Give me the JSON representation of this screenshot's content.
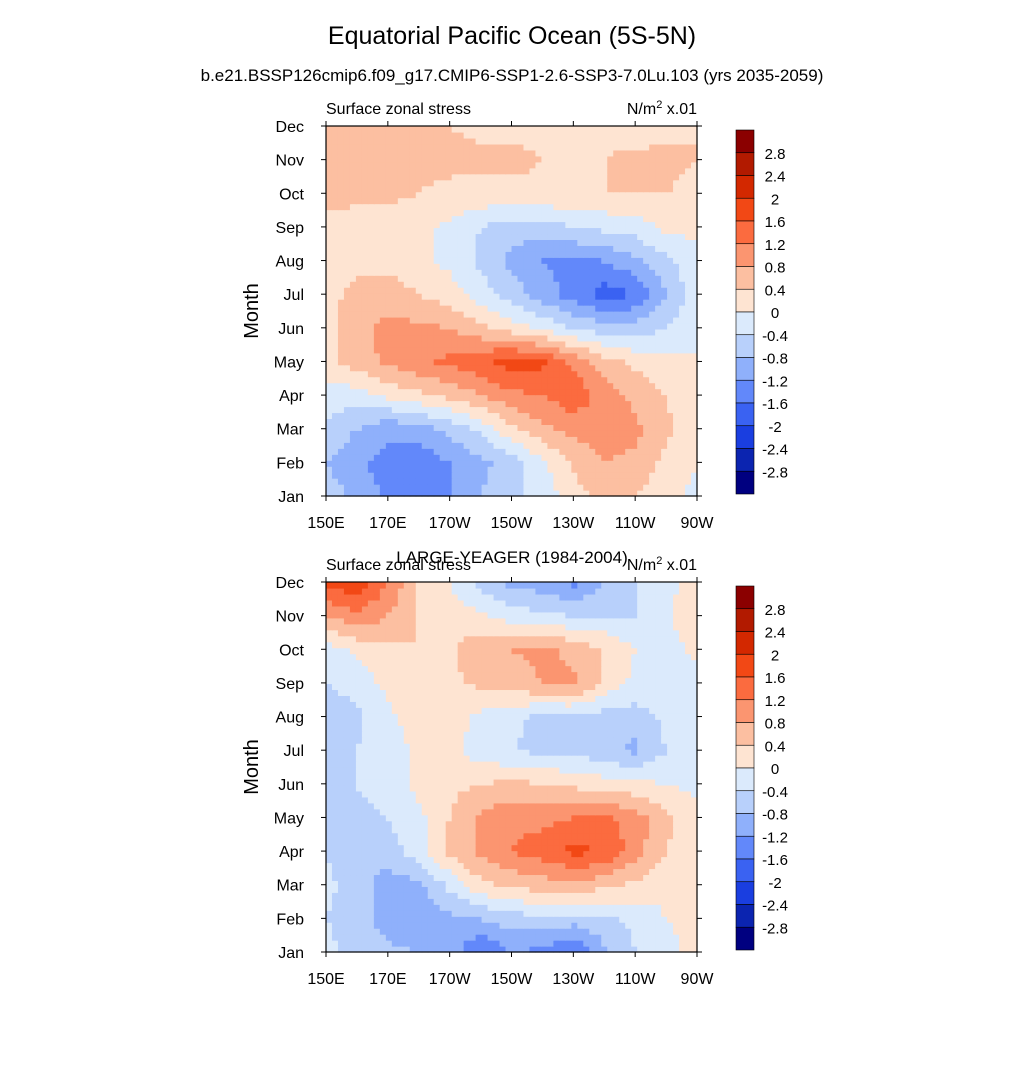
{
  "title": "Equatorial Pacific Ocean (5S-5N)",
  "subtitle": "b.e21.BSSP126cmip6.f09_g17.CMIP6-SSP1-2.6-SSP3-7.0Lu.103 (yrs 2035-2059)",
  "colorbar": {
    "levels": [
      "2.8",
      "2.4",
      "2",
      "1.6",
      "1.2",
      "0.8",
      "0.4",
      "0",
      "-0.4",
      "-0.8",
      "-1.2",
      "-1.6",
      "-2",
      "-2.4",
      "-2.8"
    ],
    "colors": [
      "#8b0000",
      "#b21a00",
      "#d32800",
      "#f24815",
      "#fb6b3f",
      "#fb9570",
      "#fcbfa1",
      "#fee4d2",
      "#dbeafc",
      "#b8d0fb",
      "#8fb0fb",
      "#6288fa",
      "#3a62f2",
      "#1a3ee0",
      "#0b24b0",
      "#000080"
    ]
  },
  "chart_data": [
    {
      "type": "heatmap",
      "plot_title": "",
      "left_label": "Surface zonal stress",
      "right_label_base": "N/m",
      "right_label_exp": "2",
      "right_label_suffix": " x.01",
      "ylabel": "Month",
      "y_ticks": [
        "Jan",
        "Feb",
        "Mar",
        "Apr",
        "May",
        "Jun",
        "Jul",
        "Aug",
        "Sep",
        "Oct",
        "Nov",
        "Dec"
      ],
      "x_ticks": [
        "150E",
        "170E",
        "170W",
        "150W",
        "130W",
        "110W",
        "90W"
      ],
      "xlim_lon": [
        150,
        270
      ],
      "ylim_month": [
        1,
        12
      ],
      "lon": [
        150,
        160,
        170,
        180,
        190,
        200,
        210,
        220,
        230,
        240,
        250,
        260,
        270
      ],
      "month": [
        1,
        2,
        3,
        4,
        5,
        6,
        7,
        8,
        9,
        10,
        11,
        12
      ],
      "values": [
        [
          -0.6,
          -0.9,
          -1.3,
          -1.4,
          -1.2,
          -0.8,
          -0.5,
          -0.2,
          0.2,
          0.5,
          0.4,
          0.1,
          -0.1
        ],
        [
          -0.8,
          -1.1,
          -1.4,
          -1.5,
          -1.2,
          -0.9,
          -0.6,
          -0.1,
          0.5,
          0.8,
          0.7,
          0.3,
          0.0
        ],
        [
          -0.5,
          -0.8,
          -1.1,
          -1.0,
          -0.7,
          -0.3,
          0.3,
          0.7,
          0.9,
          1.0,
          0.9,
          0.5,
          0.1
        ],
        [
          -0.2,
          -0.2,
          0.1,
          0.3,
          0.5,
          0.8,
          1.1,
          1.2,
          1.5,
          1.0,
          0.7,
          0.4,
          0.1
        ],
        [
          0.3,
          0.6,
          0.9,
          1.1,
          1.3,
          1.5,
          1.8,
          1.7,
          1.1,
          0.6,
          0.3,
          0.1,
          0.0
        ],
        [
          0.2,
          0.7,
          0.9,
          0.9,
          0.8,
          0.5,
          0.2,
          -0.1,
          -0.4,
          -0.6,
          -0.6,
          -0.4,
          0.0
        ],
        [
          0.3,
          0.5,
          0.6,
          0.4,
          0.2,
          -0.2,
          -0.6,
          -1.0,
          -1.4,
          -1.8,
          -1.6,
          -0.8,
          -0.2
        ],
        [
          0.3,
          0.3,
          0.3,
          0.1,
          -0.1,
          -0.5,
          -0.9,
          -1.2,
          -1.3,
          -1.2,
          -0.9,
          -0.5,
          -0.1
        ],
        [
          0.2,
          0.2,
          0.2,
          0.1,
          -0.1,
          -0.4,
          -0.6,
          -0.6,
          -0.4,
          -0.3,
          -0.2,
          0.1,
          0.1
        ],
        [
          0.6,
          0.5,
          0.5,
          0.4,
          0.3,
          0.3,
          0.3,
          0.3,
          0.4,
          0.4,
          0.4,
          0.4,
          0.3
        ],
        [
          0.5,
          0.4,
          0.5,
          0.5,
          0.5,
          0.5,
          0.5,
          0.4,
          0.4,
          0.4,
          0.5,
          0.5,
          0.4
        ],
        [
          0.4,
          0.4,
          0.4,
          0.4,
          0.4,
          0.3,
          0.3,
          0.3,
          0.3,
          0.3,
          0.2,
          0.3,
          0.4
        ]
      ]
    },
    {
      "type": "heatmap",
      "plot_title": "LARGE-YEAGER (1984-2004)",
      "left_label": "Surface zonal stress",
      "right_label_base": "N/m",
      "right_label_exp": "2",
      "right_label_suffix": " x.01",
      "ylabel": "Month",
      "y_ticks": [
        "Jan",
        "Feb",
        "Mar",
        "Apr",
        "May",
        "Jun",
        "Jul",
        "Aug",
        "Sep",
        "Oct",
        "Nov",
        "Dec"
      ],
      "x_ticks": [
        "150E",
        "170E",
        "170W",
        "150W",
        "130W",
        "110W",
        "90W"
      ],
      "xlim_lon": [
        150,
        270
      ],
      "ylim_month": [
        1,
        12
      ],
      "lon": [
        150,
        160,
        170,
        180,
        190,
        200,
        210,
        220,
        230,
        240,
        250,
        260,
        270
      ],
      "month": [
        1,
        2,
        3,
        4,
        5,
        6,
        7,
        8,
        9,
        10,
        11,
        12
      ],
      "values": [
        [
          -0.3,
          -0.5,
          -0.7,
          -0.8,
          -1.0,
          -1.6,
          -1.2,
          -1.3,
          -1.7,
          -0.9,
          -0.4,
          -0.1,
          0.1
        ],
        [
          -0.4,
          -0.6,
          -1.0,
          -1.1,
          -0.9,
          -0.8,
          -0.6,
          -0.5,
          -0.6,
          -0.5,
          -0.3,
          0.0,
          0.1
        ],
        [
          -0.3,
          -0.6,
          -1.0,
          -0.9,
          -0.3,
          0.3,
          0.5,
          0.6,
          0.7,
          0.5,
          0.3,
          0.1,
          0.2
        ],
        [
          -0.4,
          -0.7,
          -0.6,
          -0.2,
          0.5,
          0.9,
          1.2,
          1.4,
          1.7,
          1.6,
          1.0,
          0.4,
          0.2
        ],
        [
          -0.5,
          -0.5,
          -0.4,
          -0.1,
          0.4,
          0.9,
          1.1,
          1.1,
          1.2,
          1.3,
          1.0,
          0.5,
          0.1
        ],
        [
          -0.5,
          -0.4,
          -0.2,
          0.1,
          0.3,
          0.4,
          0.5,
          0.4,
          0.3,
          0.2,
          0.1,
          0.0,
          -0.1
        ],
        [
          -0.6,
          -0.4,
          -0.2,
          0.1,
          0.1,
          -0.2,
          -0.4,
          -0.5,
          -0.5,
          -0.7,
          -0.9,
          -0.4,
          -0.2
        ],
        [
          -0.7,
          -0.5,
          -0.1,
          0.2,
          0.2,
          -0.1,
          -0.3,
          -0.5,
          -0.5,
          -0.6,
          -0.6,
          -0.3,
          -0.2
        ],
        [
          -0.4,
          -0.2,
          0.1,
          0.3,
          0.3,
          0.5,
          0.6,
          0.8,
          0.9,
          0.3,
          -0.1,
          -0.2,
          -0.1
        ],
        [
          -0.2,
          0.1,
          0.3,
          0.4,
          0.3,
          0.7,
          0.8,
          0.9,
          0.7,
          0.4,
          0.0,
          -0.2,
          0.1
        ],
        [
          0.8,
          1.1,
          0.8,
          0.4,
          0.2,
          0.1,
          -0.2,
          -0.3,
          -0.4,
          -0.4,
          -0.4,
          -0.1,
          0.4
        ],
        [
          1.7,
          1.9,
          1.2,
          0.3,
          0.0,
          -0.6,
          -0.9,
          -1.0,
          -1.3,
          -0.8,
          -0.4,
          -0.2,
          0.3
        ]
      ]
    }
  ]
}
